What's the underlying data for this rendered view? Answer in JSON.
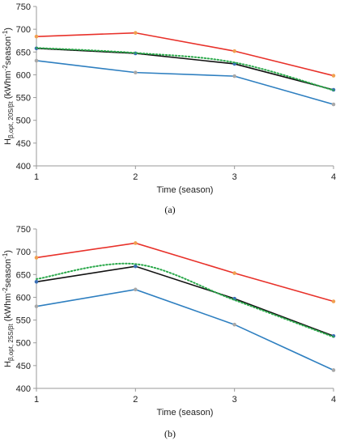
{
  "chart_data": [
    {
      "type": "line",
      "caption": "(a)",
      "xlabel": "Time (season)",
      "ylabel": "H_{β,opt, 20S/β} (kWhm⁻²season⁻¹)",
      "ylabel_main": "H",
      "ylabel_sub": "β,opt, 20S/βt",
      "ylabel_rest": " (kWhm",
      "ylabel_sup1": "-2",
      "ylabel_mid": "season",
      "ylabel_sup2": "-1",
      "ylabel_end": ")",
      "x": [
        1,
        2,
        3,
        4
      ],
      "xlim": [
        1,
        4
      ],
      "ylim": [
        400,
        750
      ],
      "yticks": [
        400,
        450,
        500,
        550,
        600,
        650,
        700,
        750
      ],
      "xticks": [
        1,
        2,
        3,
        4
      ],
      "grid": "none",
      "series": [
        {
          "color": "#e8312a",
          "marker_color": "#f0a050",
          "style": "solid",
          "values": [
            684,
            692,
            652,
            598
          ]
        },
        {
          "color": "#111111",
          "marker_color": "#3a6fb5",
          "style": "solid",
          "values": [
            658,
            647,
            624,
            567
          ]
        },
        {
          "color": "#2aa84a",
          "marker_color": "",
          "style": "dotted",
          "values": [
            659,
            648,
            627,
            566
          ],
          "smooth": true
        },
        {
          "color": "#2e7fc0",
          "marker_color": "#a8a8a8",
          "style": "solid",
          "values": [
            631,
            605,
            597,
            535
          ]
        }
      ]
    },
    {
      "type": "line",
      "caption": "(b)",
      "xlabel": "Time (season)",
      "ylabel_main": "H",
      "ylabel_sub": "β,opt, 25S/βt",
      "ylabel_rest": " (kWhm",
      "ylabel_sup1": "-2",
      "ylabel_mid": "season",
      "ylabel_sup2": "-1",
      "ylabel_end": ")",
      "x": [
        1,
        2,
        3,
        4
      ],
      "xlim": [
        1,
        4
      ],
      "ylim": [
        400,
        750
      ],
      "yticks": [
        400,
        450,
        500,
        550,
        600,
        650,
        700,
        750
      ],
      "xticks": [
        1,
        2,
        3,
        4
      ],
      "grid": "none",
      "series": [
        {
          "color": "#e8312a",
          "marker_color": "#f0a050",
          "style": "solid",
          "values": [
            687,
            719,
            653,
            591
          ]
        },
        {
          "color": "#111111",
          "marker_color": "#3a6fb5",
          "style": "solid",
          "values": [
            634,
            668,
            597,
            515
          ]
        },
        {
          "color": "#2aa84a",
          "marker_color": "",
          "style": "dotted",
          "values": [
            640,
            673,
            594,
            513
          ],
          "smooth": true
        },
        {
          "color": "#2e7fc0",
          "marker_color": "#a8a8a8",
          "style": "solid",
          "values": [
            580,
            617,
            540,
            440
          ]
        }
      ]
    }
  ]
}
